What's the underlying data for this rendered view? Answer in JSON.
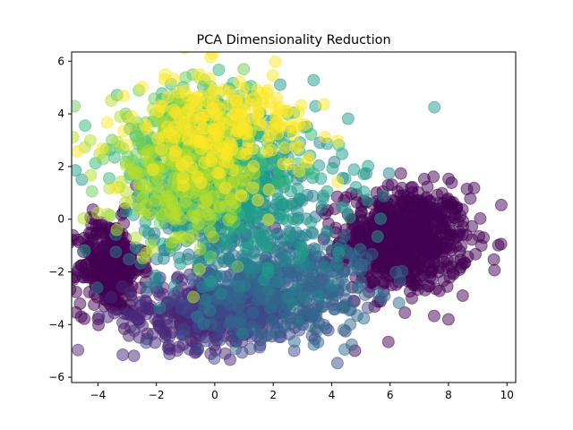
{
  "chart_data": {
    "type": "scatter",
    "title": "PCA Dimensionality Reduction",
    "xlabel": "",
    "ylabel": "",
    "xlim": [
      -4.9,
      10.3
    ],
    "ylim": [
      -6.2,
      6.35
    ],
    "xticks": [
      -4,
      -2,
      0,
      2,
      4,
      6,
      8,
      10
    ],
    "yticks": [
      -6,
      -4,
      -2,
      0,
      2,
      4,
      6
    ],
    "grid": false,
    "legend": "none",
    "colormap": "viridis",
    "marker_alpha": 0.5,
    "clusters": [
      {
        "color": "#440154",
        "center": [
          6.5,
          -0.8
        ],
        "spread": [
          1.1,
          1.0
        ],
        "count": 700
      },
      {
        "color": "#440154",
        "center": [
          -3.6,
          -1.8
        ],
        "spread": [
          0.55,
          0.9
        ],
        "count": 320
      },
      {
        "color": "#482878",
        "center": [
          -0.5,
          -3.6
        ],
        "spread": [
          1.3,
          0.65
        ],
        "count": 320
      },
      {
        "color": "#3e4989",
        "center": [
          1.5,
          -3.3
        ],
        "spread": [
          1.3,
          0.75
        ],
        "count": 300
      },
      {
        "color": "#31688e",
        "center": [
          2.5,
          -2.3
        ],
        "spread": [
          1.5,
          1.0
        ],
        "count": 280
      },
      {
        "color": "#26828e",
        "center": [
          0.8,
          0.0
        ],
        "spread": [
          1.8,
          1.5
        ],
        "count": 300
      },
      {
        "color": "#1f9e89",
        "center": [
          1.0,
          1.2
        ],
        "spread": [
          1.8,
          1.4
        ],
        "count": 260
      },
      {
        "color": "#35b779",
        "center": [
          -0.3,
          2.6
        ],
        "spread": [
          1.5,
          1.2
        ],
        "count": 240
      },
      {
        "color": "#6ece58",
        "center": [
          -1.2,
          2.3
        ],
        "spread": [
          1.2,
          1.2
        ],
        "count": 220
      },
      {
        "color": "#b5de2b",
        "center": [
          -1.0,
          1.5
        ],
        "spread": [
          1.3,
          1.3
        ],
        "count": 200
      },
      {
        "color": "#fde725",
        "center": [
          0.3,
          3.5
        ],
        "spread": [
          1.5,
          1.0
        ],
        "count": 220
      }
    ]
  }
}
